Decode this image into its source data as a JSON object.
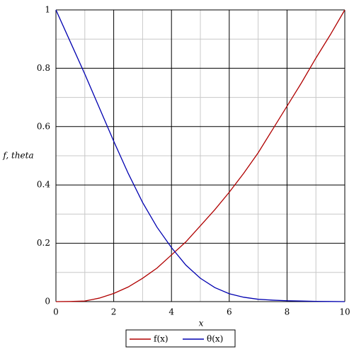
{
  "chart_data": {
    "type": "line",
    "x": [
      0,
      0.5,
      1,
      1.5,
      2,
      2.5,
      3,
      3.5,
      4,
      4.5,
      5,
      5.5,
      6,
      6.5,
      7,
      7.5,
      8,
      8.5,
      9,
      9.5,
      10
    ],
    "series": [
      {
        "name": "f(x)",
        "color": "#b00000",
        "values": [
          0,
          0.0005,
          0.002,
          0.012,
          0.028,
          0.05,
          0.08,
          0.115,
          0.16,
          0.205,
          0.26,
          0.315,
          0.375,
          0.44,
          0.51,
          0.59,
          0.67,
          0.75,
          0.835,
          0.915,
          1
        ]
      },
      {
        "name": "θ(x)",
        "color": "#0000b0",
        "values": [
          1,
          0.89,
          0.78,
          0.665,
          0.55,
          0.44,
          0.34,
          0.255,
          0.185,
          0.125,
          0.08,
          0.048,
          0.027,
          0.015,
          0.008,
          0.005,
          0.003,
          0.002,
          0.001,
          0.0005,
          0
        ]
      }
    ],
    "x_label": "x",
    "y_label": "f, theta",
    "xlim": [
      0,
      10
    ],
    "ylim": [
      0,
      1
    ],
    "xticks": [
      0,
      2,
      4,
      6,
      8,
      10
    ],
    "yticks": [
      0,
      0.2,
      0.4,
      0.6,
      0.8,
      1
    ],
    "grid": true,
    "legend": "bottom"
  }
}
